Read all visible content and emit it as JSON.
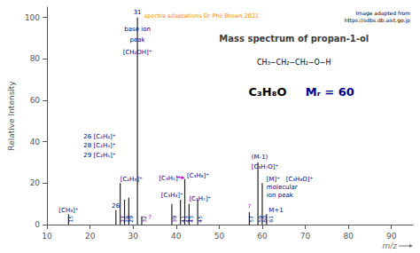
{
  "chart_data": {
    "type": "bar",
    "title": "Mass spectrum of propan-1-ol",
    "xlabel": "m/z",
    "ylabel": "Relative Intensity",
    "x": [
      15,
      26,
      27,
      28,
      29,
      31,
      32,
      39,
      41,
      42,
      43,
      45,
      57,
      59,
      60,
      61
    ],
    "values": [
      5,
      7,
      20,
      12,
      13,
      100,
      4,
      10,
      12,
      22,
      10,
      12,
      6,
      30,
      20,
      5
    ],
    "color": "#222222",
    "xlim": [
      10,
      95
    ],
    "ylim": [
      0,
      105
    ],
    "xticks": [
      10,
      20,
      30,
      40,
      50,
      60,
      70,
      80,
      90
    ],
    "yticks": [
      0,
      20,
      40,
      60,
      80,
      100
    ],
    "grid": false,
    "formula": "CH₃−CH₂−CH₂−O−H",
    "molecular_formula": "C₃H₈O",
    "mr": {
      "text": "Mᵣ = 60",
      "color": "#00008B"
    },
    "credits": {
      "text": "spectra adaptations Dr Phil Brown 2021",
      "color": "#ff8c00"
    },
    "image_credit": "Image adapted from\nhttps://sdbs.db.aist.go.jp",
    "mz_labels": [
      {
        "text": "15",
        "x": 15,
        "y": 0.5,
        "color": "#00008B"
      },
      {
        "text": "27",
        "x": 27,
        "y": 0.5,
        "color": "#00008B"
      },
      {
        "text": "28",
        "x": 28,
        "y": 0.5,
        "color": "#00008B"
      },
      {
        "text": "29",
        "x": 29,
        "y": 0.5,
        "color": "#00008B"
      },
      {
        "text": "32",
        "x": 32,
        "y": 0.5,
        "color": "#00008B"
      },
      {
        "text": "39",
        "x": 39,
        "y": 0.5,
        "color": "#00008B"
      },
      {
        "text": "41",
        "x": 41,
        "y": 0.5,
        "color": "#00008B"
      },
      {
        "text": "42",
        "x": 42,
        "y": 0.5,
        "color": "#00008B"
      },
      {
        "text": "43",
        "x": 43,
        "y": 0.5,
        "color": "#00008B"
      },
      {
        "text": "45",
        "x": 45,
        "y": 0.5,
        "color": "#00008B"
      },
      {
        "text": "57",
        "x": 57,
        "y": 0.5,
        "color": "#00008B"
      },
      {
        "text": "59",
        "x": 59,
        "y": 0.5,
        "color": "#00008B"
      },
      {
        "text": "60",
        "x": 60,
        "y": 0.5,
        "color": "#00008B"
      },
      {
        "text": "61",
        "x": 61.5,
        "y": 0.5,
        "color": "#00008B"
      }
    ],
    "annotations": [
      {
        "text": "[CH₃]⁺",
        "x": 15,
        "y": 5.5,
        "color": "#00008B",
        "align": "center"
      },
      {
        "text": "26",
        "x": 26,
        "y": 7.5,
        "color": "#00008B",
        "align": "center"
      },
      {
        "text": "[C₂H₃]⁺",
        "x": 27,
        "y": 20.5,
        "color": "#00008B"
      },
      {
        "text": "26 [C₂H₂]⁺",
        "x": 18.5,
        "y": 41,
        "color": "#00008B"
      },
      {
        "text": "28 [C₂H₄]⁺",
        "x": 18.5,
        "y": 36.5,
        "color": "#00008B"
      },
      {
        "text": "29 [C₂H₅]⁺",
        "x": 18.5,
        "y": 32,
        "color": "#00008B"
      },
      {
        "text": "31",
        "x": 31,
        "y": 101,
        "color": "#00008B",
        "align": "center"
      },
      {
        "text": "base ion",
        "x": 31,
        "y": 93,
        "color": "#00008B",
        "align": "center"
      },
      {
        "text": "peak",
        "x": 31,
        "y": 87.5,
        "color": "#00008B",
        "align": "center"
      },
      {
        "text": "[CH₂OH]⁺",
        "x": 31,
        "y": 81.5,
        "color": "#00008B",
        "align": "center"
      },
      {
        "text": "?",
        "x": 33.5,
        "y": 2,
        "color": "#cc00cc"
      },
      {
        "text": "[C₃H₃]⁺",
        "x": 36.5,
        "y": 12.5,
        "color": "#00008B"
      },
      {
        "text": "[C₃H₅]⁺",
        "x": 36,
        "y": 21,
        "color": "#00008B"
      },
      {
        "text": "[C₃H₆]⁺",
        "x": 42.5,
        "y": 22,
        "color": "#00008B"
      },
      {
        "text": "[C₃H₇]⁺",
        "x": 43,
        "y": 11,
        "color": "#00008B"
      },
      {
        "text": "?",
        "x": 57,
        "y": 7,
        "color": "#cc00cc",
        "align": "center"
      },
      {
        "text": "(M-1)",
        "x": 57.5,
        "y": 31,
        "color": "#00008B"
      },
      {
        "text": "[C₃H₇O]⁺",
        "x": 57.5,
        "y": 26.5,
        "color": "#00008B"
      },
      {
        "text": "[M]⁺",
        "x": 61,
        "y": 20.5,
        "color": "#00008B"
      },
      {
        "text": "[C₃H₈O]⁺",
        "x": 65.5,
        "y": 20.5,
        "color": "#00008B"
      },
      {
        "text": "molecular",
        "x": 61,
        "y": 16.5,
        "color": "#00008B"
      },
      {
        "text": "ion peak",
        "x": 61,
        "y": 12.5,
        "color": "#00008B"
      },
      {
        "text": "M+1",
        "x": 61.5,
        "y": 5.5,
        "color": "#00008B"
      }
    ],
    "arrows": [
      {
        "from": [
          40,
          23
        ],
        "to": [
          42,
          22.5
        ],
        "color": "#cc00cc"
      }
    ]
  }
}
